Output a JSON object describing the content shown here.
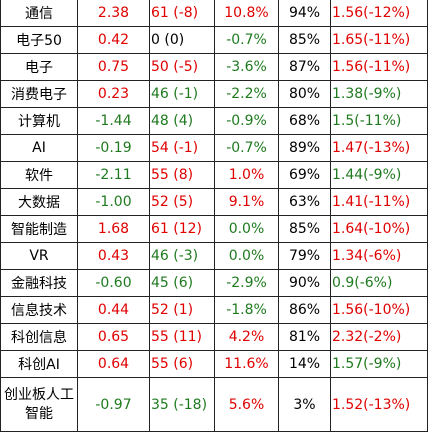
{
  "rows": [
    {
      "name": "通信",
      "v1": "2.38",
      "v2": "61 (-8)",
      "v3": "10.8%",
      "v4": "94%",
      "v5": "1.56(-12%)",
      "c1": "r",
      "c2": "r",
      "c3": "r",
      "c5": "r"
    },
    {
      "name": "电子50",
      "v1": "0.42",
      "v2": "0 (0)",
      "v3": "-0.7%",
      "v4": "85%",
      "v5": "1.65(-11%)",
      "c1": "r",
      "c2": "k",
      "c3": "g",
      "c5": "r"
    },
    {
      "name": "电子",
      "v1": "0.75",
      "v2": "50 (-5)",
      "v3": "-3.6%",
      "v4": "87%",
      "v5": "1.56(-11%)",
      "c1": "r",
      "c2": "r",
      "c3": "g",
      "c5": "r"
    },
    {
      "name": "消费电子",
      "v1": "0.23",
      "v2": "46 (-1)",
      "v3": "-2.2%",
      "v4": "80%",
      "v5": "1.38(-9%)",
      "c1": "r",
      "c2": "g",
      "c3": "g",
      "c5": "g"
    },
    {
      "name": "计算机",
      "v1": "-1.44",
      "v2": "48 (4)",
      "v3": "-0.9%",
      "v4": "68%",
      "v5": "1.5(-11%)",
      "c1": "g",
      "c2": "g",
      "c3": "g",
      "c5": "g"
    },
    {
      "name": "AI",
      "v1": "-0.19",
      "v2": "54 (-1)",
      "v3": "-0.7%",
      "v4": "89%",
      "v5": "1.47(-13%)",
      "c1": "g",
      "c2": "r",
      "c3": "g",
      "c5": "r"
    },
    {
      "name": "软件",
      "v1": "-2.11",
      "v2": "55 (8)",
      "v3": "1.0%",
      "v4": "69%",
      "v5": "1.44(-9%)",
      "c1": "g",
      "c2": "r",
      "c3": "r",
      "c5": "g"
    },
    {
      "name": "大数据",
      "v1": "-1.00",
      "v2": "52 (5)",
      "v3": "9.1%",
      "v4": "63%",
      "v5": "1.41(-11%)",
      "c1": "g",
      "c2": "r",
      "c3": "r",
      "c5": "r"
    },
    {
      "name": "智能制造",
      "v1": "1.68",
      "v2": "61 (12)",
      "v3": "0.0%",
      "v4": "85%",
      "v5": "1.64(-10%)",
      "c1": "r",
      "c2": "r",
      "c3": "g",
      "c5": "r"
    },
    {
      "name": "VR",
      "v1": "0.43",
      "v2": "46 (-3)",
      "v3": "0.0%",
      "v4": "79%",
      "v5": "1.34(-6%)",
      "c1": "r",
      "c2": "g",
      "c3": "g",
      "c5": "r"
    },
    {
      "name": "金融科技",
      "v1": "-0.60",
      "v2": "45 (6)",
      "v3": "-2.9%",
      "v4": "90%",
      "v5": "0.9(-6%)",
      "c1": "g",
      "c2": "g",
      "c3": "g",
      "c5": "g"
    },
    {
      "name": "信息技术",
      "v1": "0.44",
      "v2": "52 (1)",
      "v3": "-1.8%",
      "v4": "86%",
      "v5": "1.56(-10%)",
      "c1": "r",
      "c2": "r",
      "c3": "g",
      "c5": "r"
    },
    {
      "name": "科创信息",
      "v1": "0.65",
      "v2": "55 (11)",
      "v3": "4.2%",
      "v4": "81%",
      "v5": "2.32(-2%)",
      "c1": "r",
      "c2": "r",
      "c3": "r",
      "c5": "r"
    },
    {
      "name": "科创AI",
      "v1": "0.64",
      "v2": "55 (6)",
      "v3": "11.6%",
      "v4": "14%",
      "v5": "1.57(-9%)",
      "c1": "r",
      "c2": "r",
      "c3": "r",
      "c5": "g"
    },
    {
      "name": "创业板人工智能",
      "v1": "-0.97",
      "v2": "35 (-18)",
      "v3": "5.6%",
      "v4": "3%",
      "v5": "1.52(-13%)",
      "c1": "g",
      "c2": "g",
      "c3": "r",
      "c5": "r"
    }
  ]
}
